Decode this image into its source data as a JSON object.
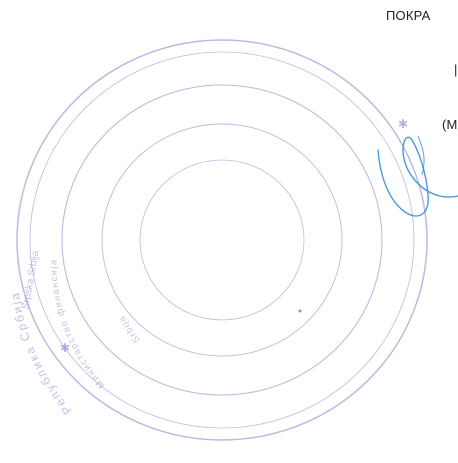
{
  "document": {
    "lines": [
      "ПОКРА",
      "|",
      "(М"
    ]
  },
  "seal": {
    "color": "#8a80c9",
    "outer_text": "Република Србија",
    "middle_text": "Министарство финансија",
    "inner_text": "Srbija",
    "side_text": "Srpska Srbija"
  },
  "signature": {
    "color": "#3b8fd4"
  }
}
